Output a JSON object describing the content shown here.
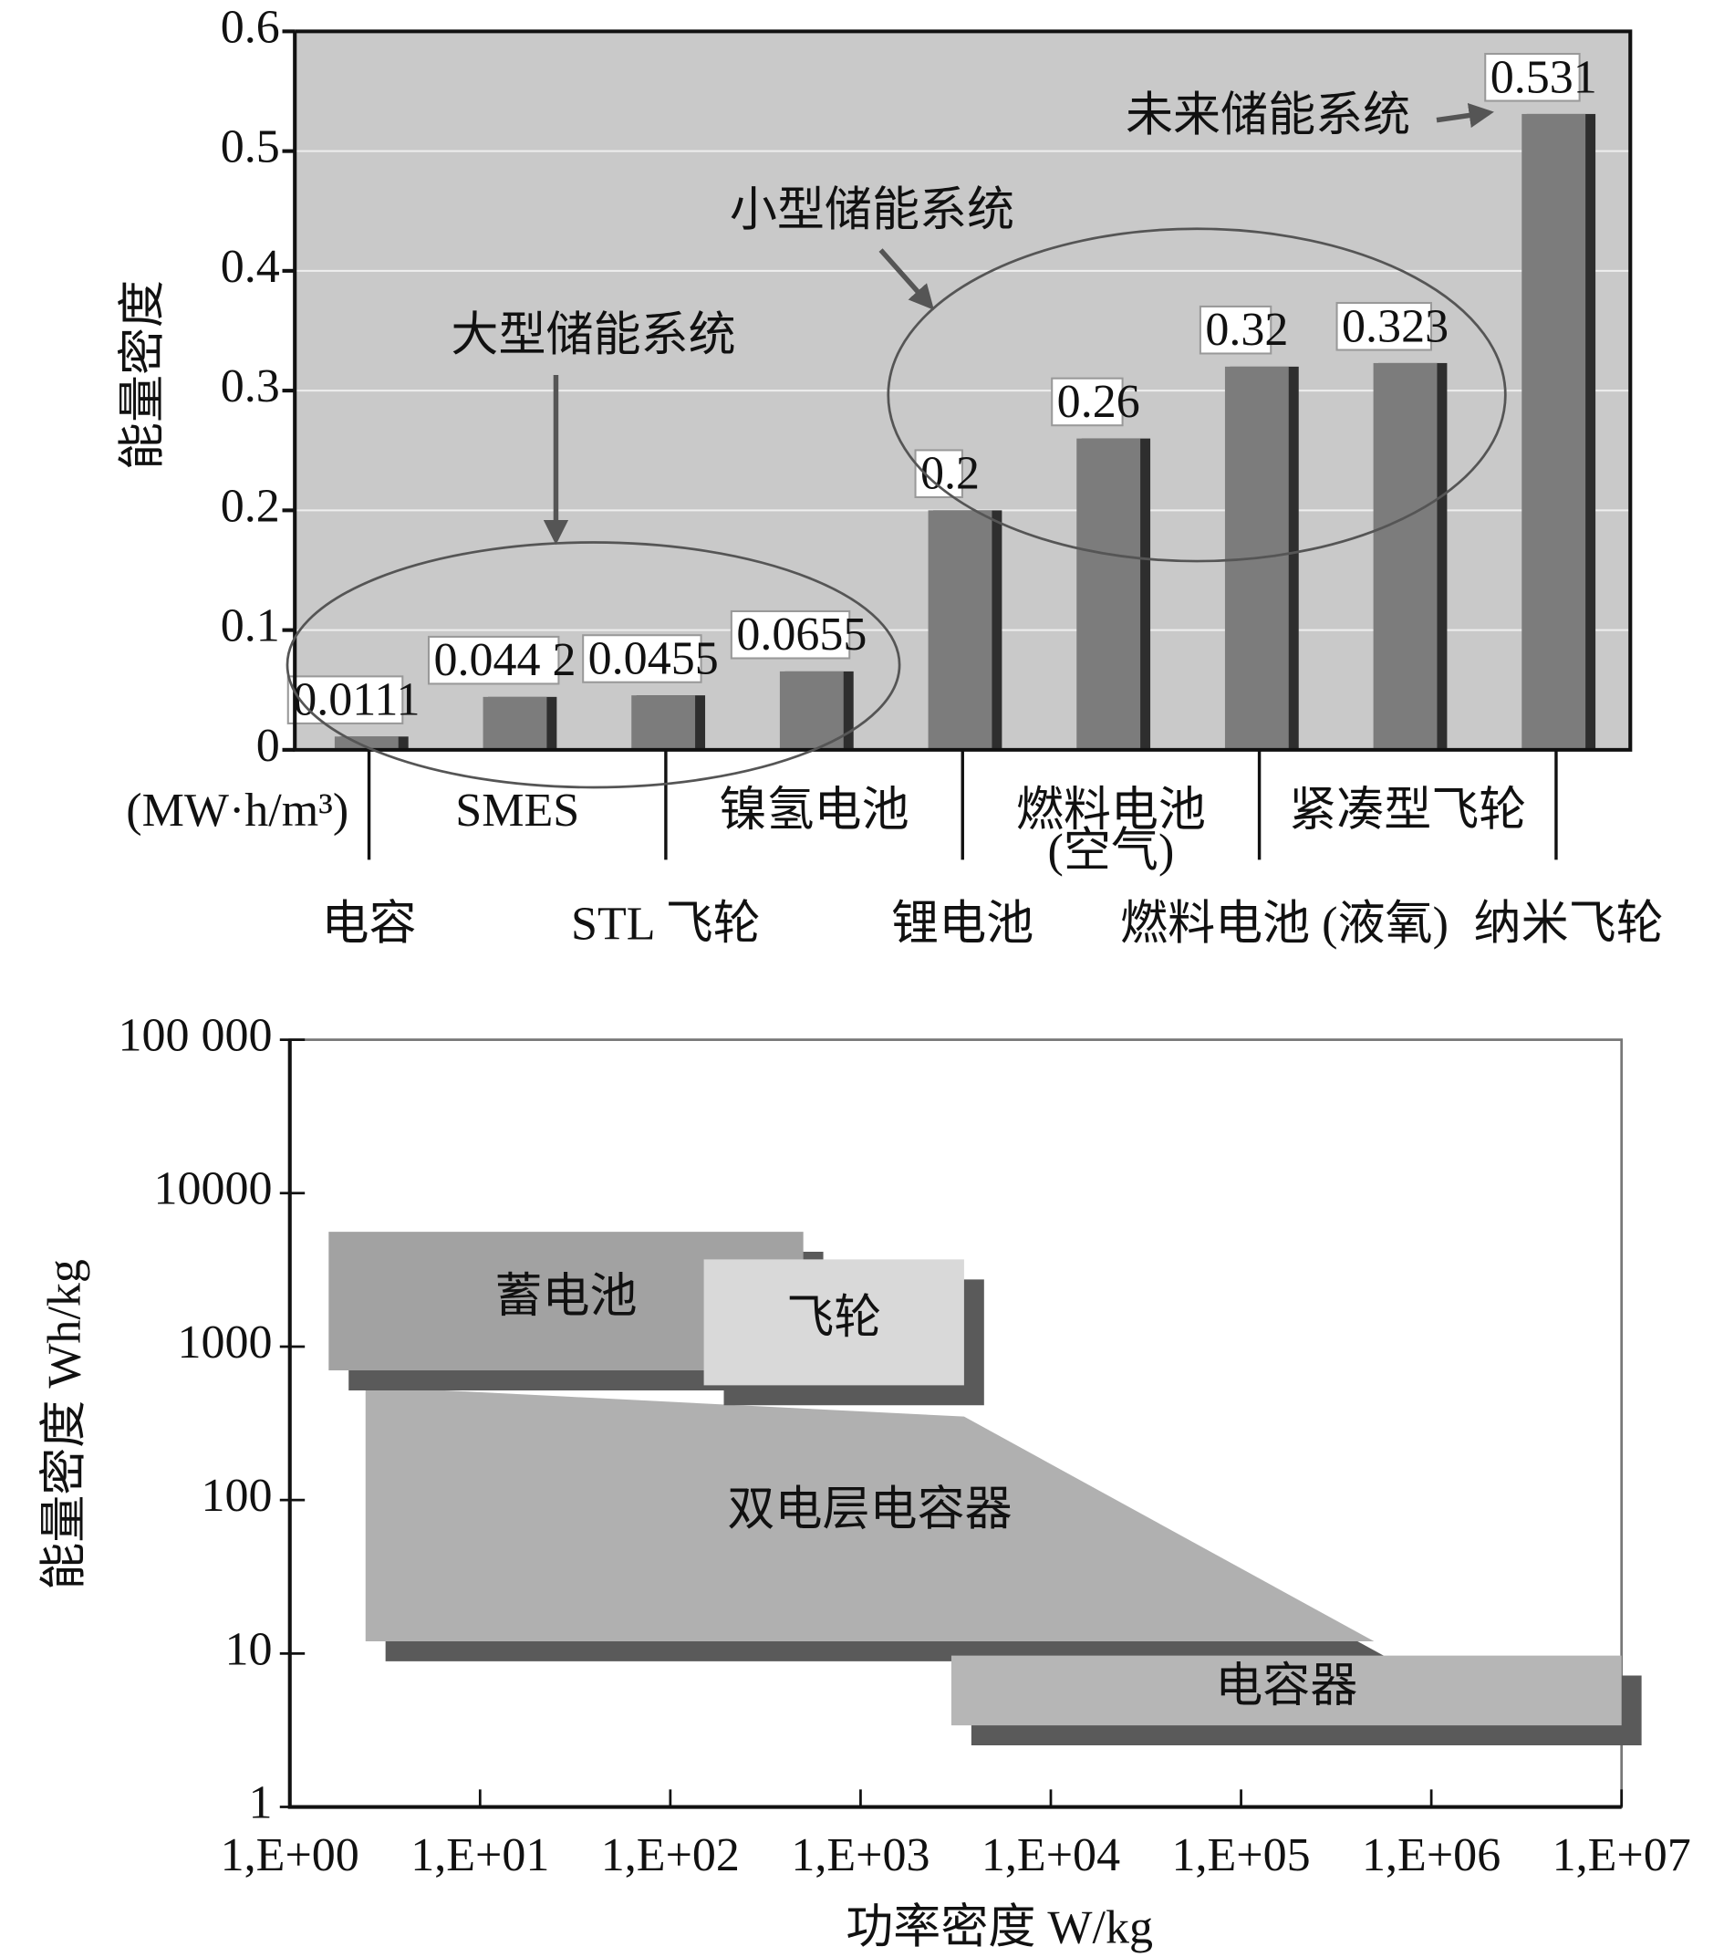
{
  "chart_data": [
    {
      "type": "bar",
      "ylabel": "能量密度",
      "yunit": "(MW·h/m³)",
      "categories": [
        "电容",
        "SMES",
        "STL 飞轮",
        "镍氢电池",
        "锂电池",
        "燃料电池\n(空气)",
        "燃料电池 (液氧)",
        "紧凑型飞轮",
        "纳米飞轮"
      ],
      "values": [
        0.0111,
        0.0442,
        0.0455,
        0.0655,
        0.2,
        0.26,
        0.32,
        0.323,
        0.531
      ],
      "value_labels": [
        "0.0111",
        "0.044 2",
        "0.0455",
        "0.0655",
        "0.2",
        "0.26",
        "0.32",
        "0.323",
        "0.531"
      ],
      "color": "#7c7c7c",
      "ylim": [
        0,
        0.6
      ],
      "yticks": [
        0,
        0.1,
        0.2,
        0.3,
        0.4,
        0.5,
        0.6
      ],
      "grid": true,
      "annotations": [
        "大型储能系统",
        "小型储能系统",
        "未来储能系统"
      ]
    },
    {
      "type": "region",
      "xlabel": "功率密度 W/kg",
      "ylabel": "能量密度 Wh/kg",
      "log_x": true,
      "log_y": true,
      "xlim": [
        1,
        10000000
      ],
      "ylim": [
        1,
        100000
      ],
      "xticks": [
        {
          "value": 1,
          "label": "1,E+00"
        },
        {
          "value": 10,
          "label": "1,E+01"
        },
        {
          "value": 100,
          "label": "1,E+02"
        },
        {
          "value": 1000,
          "label": "1,E+03"
        },
        {
          "value": 10000,
          "label": "1,E+04"
        },
        {
          "value": 100000,
          "label": "1,E+05"
        },
        {
          "value": 1000000,
          "label": "1,E+06"
        },
        {
          "value": 10000000,
          "label": "1,E+07"
        }
      ],
      "yticks": [
        1,
        10,
        100,
        1000,
        10000,
        {
          "value": 100000,
          "label": "100 000"
        }
      ],
      "regions": [
        {
          "name": "双电层电容器",
          "color": "#b0b0b0",
          "shape": "polygon",
          "x": [
            2.5,
            3500,
            500000,
            2.5
          ],
          "y": [
            550,
            350,
            12,
            12
          ]
        },
        {
          "name": "蓄电池",
          "color": "#a2a2a2",
          "shape": "rect",
          "x": [
            1.6,
            500
          ],
          "y": [
            700,
            5600
          ]
        },
        {
          "name": "飞轮",
          "color": "#d9d9d9",
          "shape": "rect",
          "x": [
            150,
            3500
          ],
          "y": [
            560,
            3700
          ]
        },
        {
          "name": "电容器",
          "color": "#b6b6b6",
          "shape": "rect",
          "x": [
            3000,
            10000000
          ],
          "y": [
            3.4,
            9.7
          ]
        }
      ]
    }
  ]
}
